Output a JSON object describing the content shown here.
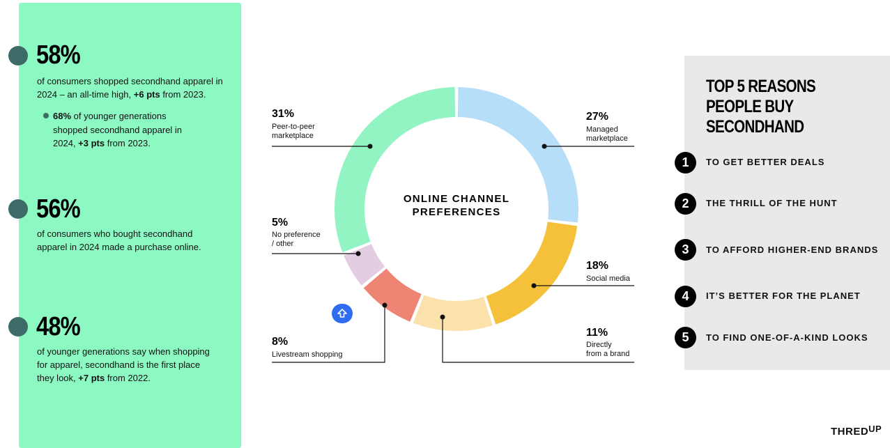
{
  "stats": [
    {
      "value": "58%",
      "text_pre": "of consumers shopped secondhand apparel in 2024 – an all-time high, ",
      "text_bold": "+6 pts",
      "text_post": " from 2023."
    },
    {
      "value": "56%",
      "text": "of consumers who bought secondhand apparel in 2024 made a purchase online."
    },
    {
      "value": "48%",
      "text_pre": "of younger generations say when shopping for apparel, secondhand is the first place they look, ",
      "text_bold": "+7 pts",
      "text_post": " from 2022."
    }
  ],
  "sub_stat": {
    "bold": "68%",
    "text_pre": " of younger generations shopped secondhand apparel in 2024, ",
    "text_bold": "+3 pts",
    "text_post": " from 2023."
  },
  "chart_data": {
    "type": "pie",
    "title": "ONLINE CHANNEL PREFERENCES",
    "slices": [
      {
        "label": "Managed marketplace",
        "value": 27,
        "color": "#b7def8"
      },
      {
        "label": "Social media",
        "value": 18,
        "color": "#f5c03a"
      },
      {
        "label": "Directly from a brand",
        "value": 11,
        "color": "#fbe2ac"
      },
      {
        "label": "Livestream shopping",
        "value": 8,
        "color": "#ee8474"
      },
      {
        "label": "No preference / other",
        "value": 5,
        "color": "#e2cde3"
      },
      {
        "label": "Peer-to-peer marketplace",
        "value": 31,
        "color": "#92f4c3"
      }
    ]
  },
  "labels": {
    "p2p": {
      "pct": "31%",
      "line1": "Peer-to-peer",
      "line2": "marketplace"
    },
    "managed": {
      "pct": "27%",
      "line1": "Managed",
      "line2": "marketplace"
    },
    "nopref": {
      "pct": "5%",
      "line1": "No preference",
      "line2": "/ other"
    },
    "social": {
      "pct": "18%",
      "line1": "Social media"
    },
    "livestream": {
      "pct": "8%",
      "line1": "Livestream shopping"
    },
    "brand": {
      "pct": "11%",
      "line1": "Directly",
      "line2": "from a brand"
    }
  },
  "reasons": {
    "title_lines": [
      "TOP 5 REASONS",
      "PEOPLE BUY",
      "SECONDHAND"
    ],
    "items": [
      {
        "num": "1",
        "text": "TO GET BETTER DEALS"
      },
      {
        "num": "2",
        "text": "THE THRILL OF THE HUNT"
      },
      {
        "num": "3",
        "text": "TO AFFORD HIGHER-END BRANDS"
      },
      {
        "num": "4",
        "text": "IT’S BETTER FOR THE PLANET"
      },
      {
        "num": "5",
        "text": "TO FIND ONE-OF-A-KIND LOOKS"
      }
    ]
  },
  "brand": {
    "main": "THRED",
    "sup": "UP"
  },
  "icons": {
    "float_button": "arrow-up-icon"
  }
}
